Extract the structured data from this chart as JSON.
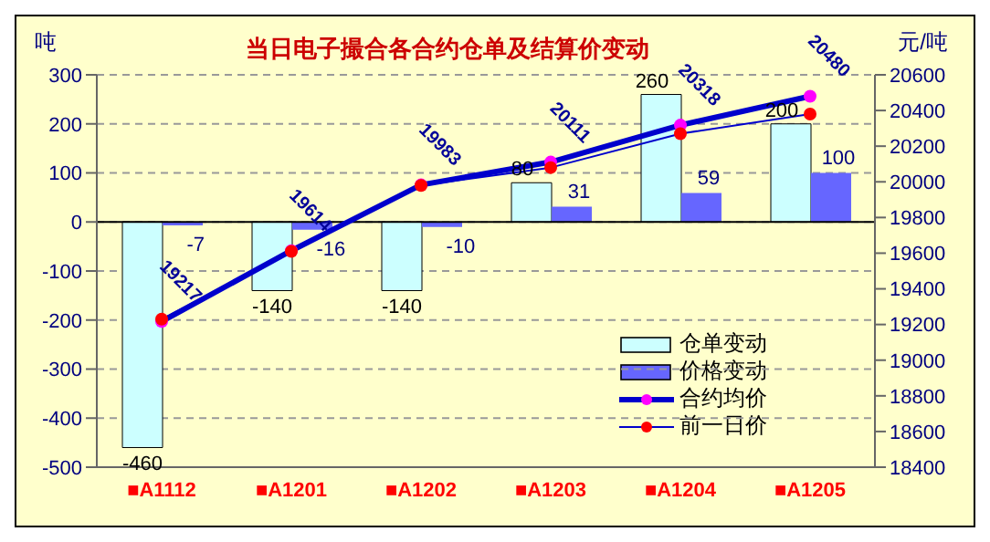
{
  "chart_data": {
    "type": "bar",
    "title": "当日电子撮合各合约仓单及结算价变动",
    "ylabel": "吨",
    "y2label": "元/吨",
    "categories": [
      "■A1112",
      "■A1201",
      "■A1202",
      "■A1203",
      "■A1204",
      "■A1205"
    ],
    "series": [
      {
        "name": "仓单变动",
        "color": "#ccffff",
        "values": [
          -460,
          -140,
          -140,
          80,
          260,
          200
        ]
      },
      {
        "name": "价格变动",
        "color": "#6666ff",
        "values": [
          -7,
          -16,
          -10,
          31,
          59,
          100
        ]
      },
      {
        "name": "合约均价",
        "type": "line",
        "axis": "y2",
        "color": "#0000cc",
        "marker": "circle",
        "colors": [
          "#ff00ff",
          "#ff00ff",
          "#ff00ff",
          "#ff00ff",
          "#ff00ff",
          "#ff00ff"
        ],
        "data_labels": true,
        "values": [
          19217,
          19614,
          19983,
          20111,
          20318,
          20480
        ]
      },
      {
        "name": "前一日价",
        "type": "line",
        "axis": "y2",
        "color": "#0000cc",
        "marker": "circle",
        "colors": [
          "#ff0000",
          "#ff0000",
          "#ff0000",
          "#ff0000",
          "#ff0000",
          "#ff0000"
        ],
        "data_labels": false,
        "values": [
          19230,
          19610,
          19980,
          20080,
          20270,
          20380
        ]
      }
    ],
    "ylim": [
      -500,
      300
    ],
    "yticks": [
      -500,
      -400,
      -300,
      -200,
      -100,
      0,
      100,
      200,
      300
    ],
    "y2lim": [
      18400,
      20600
    ],
    "y2ticks": [
      18400,
      18600,
      18800,
      19000,
      19200,
      19400,
      19600,
      19800,
      20000,
      20200,
      20400,
      20600
    ],
    "grid": "y",
    "legend": "right",
    "data_labels": true
  }
}
